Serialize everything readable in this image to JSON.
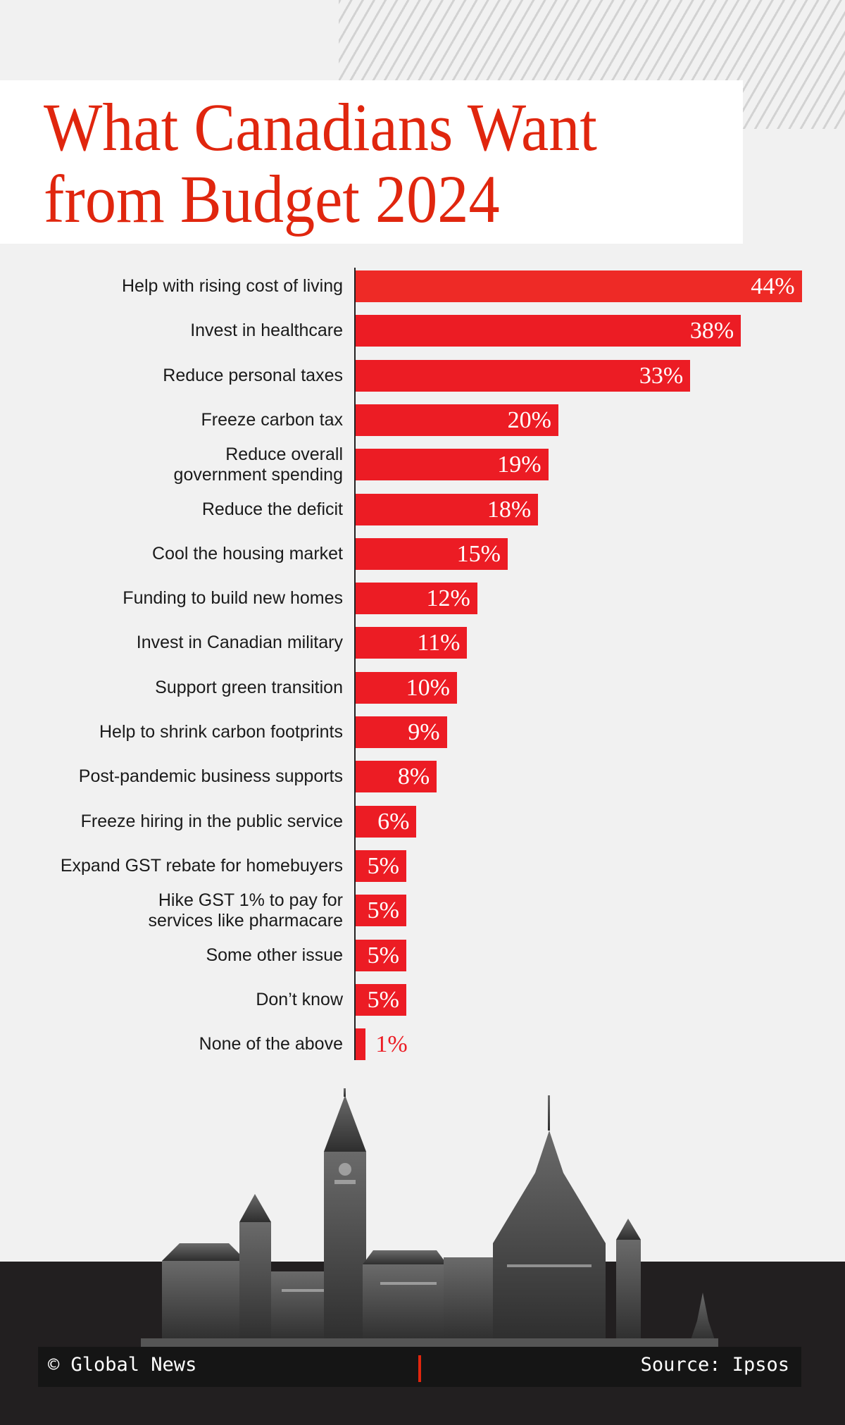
{
  "title_line1": "What Canadians Want",
  "title_line2": "from Budget 2024",
  "footer": {
    "credit": "© Global News",
    "source": "Source: Ipsos"
  },
  "colors": {
    "bar": "#ec1c24",
    "title": "#e0260e",
    "background": "#f1f1f1",
    "footer": "#221f20"
  },
  "chart_data": {
    "type": "bar",
    "orientation": "horizontal",
    "title": "What Canadians Want from Budget 2024",
    "categories": [
      "Help with rising cost of living",
      "Invest in healthcare",
      "Reduce personal taxes",
      "Freeze carbon tax",
      "Reduce overall\ngovernment spending",
      "Reduce the deficit",
      "Cool the housing market",
      "Funding to build new homes",
      "Invest in Canadian military",
      "Support green transition",
      "Help to shrink carbon footprints",
      "Post-pandemic business supports",
      "Freeze hiring in the public service",
      "Expand GST rebate for homebuyers",
      "Hike GST 1% to pay for\nservices like pharmacare",
      "Some other issue",
      "Don’t know",
      "None of the above"
    ],
    "values": [
      44,
      38,
      33,
      20,
      19,
      18,
      15,
      12,
      11,
      10,
      9,
      8,
      6,
      5,
      5,
      5,
      5,
      1
    ],
    "data_labels": [
      "44%",
      "38%",
      "33%",
      "20%",
      "19%",
      "18%",
      "15%",
      "12%",
      "11%",
      "10%",
      "9%",
      "8%",
      "6%",
      "5%",
      "5%",
      "5%",
      "5%",
      "1%"
    ],
    "unit": "%",
    "grid": false
  }
}
